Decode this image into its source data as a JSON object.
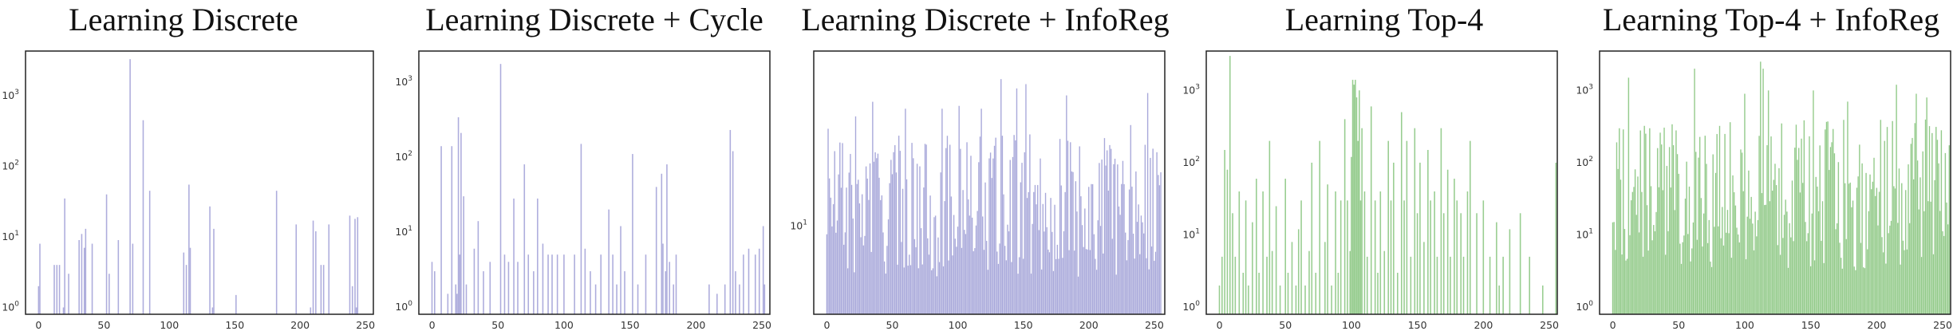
{
  "colors": {
    "purple": "#9f9ed6",
    "green": "#86c47c"
  },
  "chart_data": [
    {
      "type": "bar",
      "title": "Learning Discrete",
      "color": "purple",
      "x_ticks": [
        "0",
        "50",
        "100",
        "150",
        "200",
        "250"
      ],
      "x_tick_values": [
        0,
        50,
        100,
        150,
        200,
        250
      ],
      "xlim": [
        -10,
        256
      ],
      "y_scale": "log",
      "y_ticks": [
        "10^0",
        "10^1",
        "10^2",
        "10^3"
      ],
      "y_tick_values": [
        1,
        10,
        100,
        1000
      ],
      "ylim": [
        0.8,
        4300
      ],
      "x": [
        0,
        1,
        12,
        14,
        16,
        19,
        20,
        23,
        31,
        33,
        35,
        36,
        41,
        52,
        54,
        61,
        70,
        72,
        80,
        85,
        111,
        113,
        115,
        116,
        131,
        133,
        134,
        151,
        182,
        197,
        208,
        210,
        212,
        216,
        218,
        222,
        238,
        240,
        242,
        243,
        244
      ],
      "values": [
        2,
        8,
        4,
        4,
        4,
        1,
        35,
        3,
        9,
        11,
        7,
        13,
        8,
        40,
        3,
        9,
        3300,
        8,
        450,
        45,
        6,
        4,
        55,
        7,
        27,
        1,
        13,
        1.5,
        45,
        15,
        1,
        17,
        12,
        4,
        4,
        15,
        20,
        2,
        18,
        1,
        19
      ]
    },
    {
      "type": "bar",
      "title": "Learning Discrete + Cycle",
      "color": "purple",
      "x_ticks": [
        "0",
        "50",
        "100",
        "150",
        "200",
        "250"
      ],
      "x_tick_values": [
        0,
        50,
        100,
        150,
        200,
        250
      ],
      "xlim": [
        -10,
        256
      ],
      "y_scale": "log",
      "y_ticks": [
        "10^0",
        "10^1",
        "10^2",
        "10^3"
      ],
      "y_tick_values": [
        1,
        10,
        100,
        1000
      ],
      "ylim": [
        0.8,
        2600
      ],
      "x": [
        0,
        2,
        7,
        12,
        15,
        18,
        19,
        20,
        21,
        22,
        24,
        26,
        32,
        35,
        39,
        44,
        52,
        55,
        58,
        62,
        65,
        70,
        73,
        77,
        80,
        84,
        88,
        91,
        95,
        100,
        108,
        113,
        116,
        120,
        124,
        128,
        134,
        137,
        140,
        143,
        146,
        152,
        156,
        162,
        170,
        174,
        175,
        177,
        178,
        180,
        183,
        185,
        210,
        216,
        222,
        226,
        228,
        230,
        233,
        236,
        240,
        245,
        248,
        251,
        252
      ],
      "values": [
        4,
        3,
        140,
        1.5,
        140,
        2,
        1.5,
        340,
        5,
        210,
        30,
        2,
        6,
        14,
        3,
        4,
        1750,
        5,
        4,
        28,
        4,
        80,
        5,
        3,
        28,
        7,
        5,
        5,
        5,
        5,
        5,
        150,
        6,
        3,
        2,
        5,
        20,
        5,
        2,
        12,
        3,
        110,
        2,
        5,
        40,
        60,
        7,
        3,
        80,
        4,
        2,
        5,
        2,
        1.5,
        2,
        230,
        120,
        3,
        2,
        5,
        6,
        5,
        6,
        12,
        2
      ]
    },
    {
      "type": "bar",
      "title": "Learning Discrete + InfoReg",
      "color": "purple",
      "x_ticks": [
        "0",
        "50",
        "100",
        "150",
        "200",
        "250"
      ],
      "x_tick_values": [
        0,
        50,
        100,
        150,
        200,
        250
      ],
      "xlim": [
        -10,
        258
      ],
      "y_scale": "log",
      "y_ticks": [
        "10^1"
      ],
      "y_tick_values": [
        10
      ],
      "ylim": [
        3,
        110
      ],
      "dense_bars": 256,
      "peaks": [
        {
          "x": 1,
          "value": 38
        },
        {
          "x": 22,
          "value": 45
        },
        {
          "x": 35,
          "value": 55
        },
        {
          "x": 60,
          "value": 50
        },
        {
          "x": 88,
          "value": 50
        },
        {
          "x": 101,
          "value": 52
        },
        {
          "x": 118,
          "value": 50
        },
        {
          "x": 133,
          "value": 75
        },
        {
          "x": 145,
          "value": 66
        },
        {
          "x": 152,
          "value": 70
        },
        {
          "x": 183,
          "value": 60
        },
        {
          "x": 232,
          "value": 40
        },
        {
          "x": 245,
          "value": 62
        }
      ]
    },
    {
      "type": "bar",
      "title": "Learning Top-4",
      "color": "green",
      "x_ticks": [
        "0",
        "50",
        "100",
        "150",
        "200",
        "250"
      ],
      "x_tick_values": [
        0,
        50,
        100,
        150,
        200,
        250
      ],
      "xlim": [
        -10,
        256
      ],
      "y_scale": "log",
      "y_ticks": [
        "10^0",
        "10^1",
        "10^2",
        "10^3"
      ],
      "y_tick_values": [
        1,
        10,
        100,
        1000
      ],
      "ylim": [
        0.8,
        3500
      ],
      "x": [
        0,
        2,
        4,
        6,
        8,
        10,
        12,
        15,
        18,
        20,
        22,
        25,
        28,
        30,
        33,
        36,
        38,
        40,
        43,
        46,
        50,
        52,
        55,
        58,
        60,
        62,
        65,
        68,
        70,
        73,
        76,
        80,
        82,
        85,
        88,
        90,
        92,
        95,
        97,
        99,
        100,
        101,
        102,
        103,
        104,
        105,
        106,
        107,
        108,
        110,
        112,
        115,
        118,
        120,
        122,
        125,
        128,
        130,
        132,
        135,
        138,
        140,
        142,
        145,
        148,
        150,
        152,
        155,
        158,
        160,
        163,
        165,
        168,
        170,
        173,
        175,
        178,
        180,
        183,
        185,
        188,
        190,
        195,
        200,
        205,
        210,
        212,
        215,
        220,
        228,
        235,
        245,
        255
      ],
      "values": [
        2,
        5,
        150,
        80,
        3000,
        20,
        5,
        40,
        3,
        30,
        2,
        15,
        60,
        3,
        40,
        5,
        200,
        6,
        25,
        2,
        60,
        3,
        8,
        2,
        12,
        30,
        2,
        6,
        100,
        3,
        200,
        8,
        50,
        2,
        40,
        3,
        30,
        400,
        30,
        6,
        120,
        1400,
        1200,
        1400,
        800,
        200,
        1000,
        30,
        300,
        40,
        5,
        600,
        30,
        3,
        40,
        6,
        200,
        30,
        100,
        3,
        500,
        30,
        200,
        5,
        300,
        20,
        100,
        8,
        150,
        30,
        40,
        5,
        300,
        20,
        80,
        5,
        60,
        30,
        20,
        5,
        40,
        200,
        20,
        30,
        5,
        15,
        2,
        5,
        12,
        20,
        5,
        2,
        100
      ]
    },
    {
      "type": "bar",
      "title": "Learning Top-4 + InfoReg",
      "color": "green",
      "x_ticks": [
        "0",
        "50",
        "100",
        "150",
        "200",
        "250"
      ],
      "x_tick_values": [
        0,
        50,
        100,
        150,
        200,
        250
      ],
      "xlim": [
        -10,
        256
      ],
      "y_scale": "log",
      "y_ticks": [
        "10^0",
        "10^1",
        "10^2",
        "10^3"
      ],
      "y_tick_values": [
        1,
        10,
        100,
        1000
      ],
      "ylim": [
        0.8,
        3500
      ],
      "dense_bars": 256,
      "peaks": [
        {
          "x": 5,
          "value": 300
        },
        {
          "x": 12,
          "value": 1500
        },
        {
          "x": 28,
          "value": 300
        },
        {
          "x": 48,
          "value": 280
        },
        {
          "x": 62,
          "value": 2000
        },
        {
          "x": 85,
          "value": 250
        },
        {
          "x": 100,
          "value": 900
        },
        {
          "x": 112,
          "value": 2500
        },
        {
          "x": 114,
          "value": 2000
        },
        {
          "x": 118,
          "value": 1000
        },
        {
          "x": 128,
          "value": 350
        },
        {
          "x": 152,
          "value": 1000
        },
        {
          "x": 178,
          "value": 700
        },
        {
          "x": 215,
          "value": 1200
        },
        {
          "x": 230,
          "value": 900
        },
        {
          "x": 238,
          "value": 800
        }
      ]
    }
  ]
}
